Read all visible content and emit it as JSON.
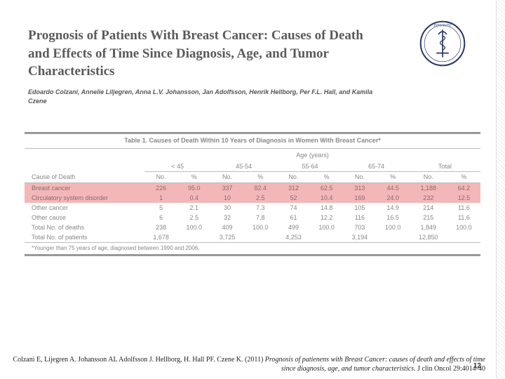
{
  "header": {
    "title": "Prognosis of Patients With Breast Cancer: Causes of Death and Effects of Time Since Diagnosis, Age, and Tumor Characteristics",
    "authors": "Edoardo Colzani, Annelie Liljegren, Anna L.V. Johansson, Jan Adolfsson, Henrik Hellborg, Per F.L. Hall, and Kamila Czene"
  },
  "table": {
    "caption": "Table 1. Causes of Death Within 10 Years of Diagnosis in Women With Breast Cancer*",
    "age_label": "Age (years)",
    "groups": [
      "< 45",
      "45-54",
      "55-64",
      "65-74",
      "Total"
    ],
    "col_first": "Cause of Death",
    "col_no": "No.",
    "col_pct": "%",
    "rows": [
      {
        "label": "Breast cancer",
        "hl": true,
        "cells": [
          "226",
          "95.0",
          "337",
          "82.4",
          "312",
          "62.5",
          "313",
          "44.5",
          "1,188",
          "64.2"
        ]
      },
      {
        "label": "Circulatory system disorder",
        "hl": true,
        "cells": [
          "1",
          "0.4",
          "10",
          "2.5",
          "52",
          "10.4",
          "169",
          "24.0",
          "232",
          "12.5"
        ]
      },
      {
        "label": "Other cancer",
        "hl": false,
        "cells": [
          "5",
          "2.1",
          "30",
          "7.3",
          "74",
          "14.8",
          "105",
          "14.9",
          "214",
          "11.6"
        ]
      },
      {
        "label": "Other cause",
        "hl": false,
        "cells": [
          "6",
          "2.5",
          "32",
          "7.8",
          "61",
          "12.2",
          "116",
          "16.5",
          "215",
          "11.6"
        ]
      },
      {
        "label": "Total No. of deaths",
        "hl": false,
        "cells": [
          "238",
          "100.0",
          "409",
          "100.0",
          "499",
          "100.0",
          "703",
          "100.0",
          "1,849",
          "100.0"
        ]
      },
      {
        "label": "Total No. of patients",
        "hl": false,
        "cells": [
          "1,678",
          "",
          "3,725",
          "",
          "4,253",
          "",
          "3,194",
          "",
          "12,850",
          ""
        ]
      }
    ],
    "footnote": "*Younger than 75 years of age, diagnosed between 1990 and 2006."
  },
  "citation": {
    "authors_year": "Colzani E, Lijegren A. Johansson AL Adolfsson J. Hellborg, H. Hall PF. Czene K. (2011) ",
    "italic": "Prognosis of patienens with Breast Cancer: causes of death and effects of time since diagnosis, age, and tumor characteristics. ",
    "tail": "J clin Oncol 29:4014-40"
  },
  "slide_num": "12",
  "colors": {
    "hl_bg": "#f4b7b7",
    "border": "#999999",
    "text_gray": "#888888"
  }
}
